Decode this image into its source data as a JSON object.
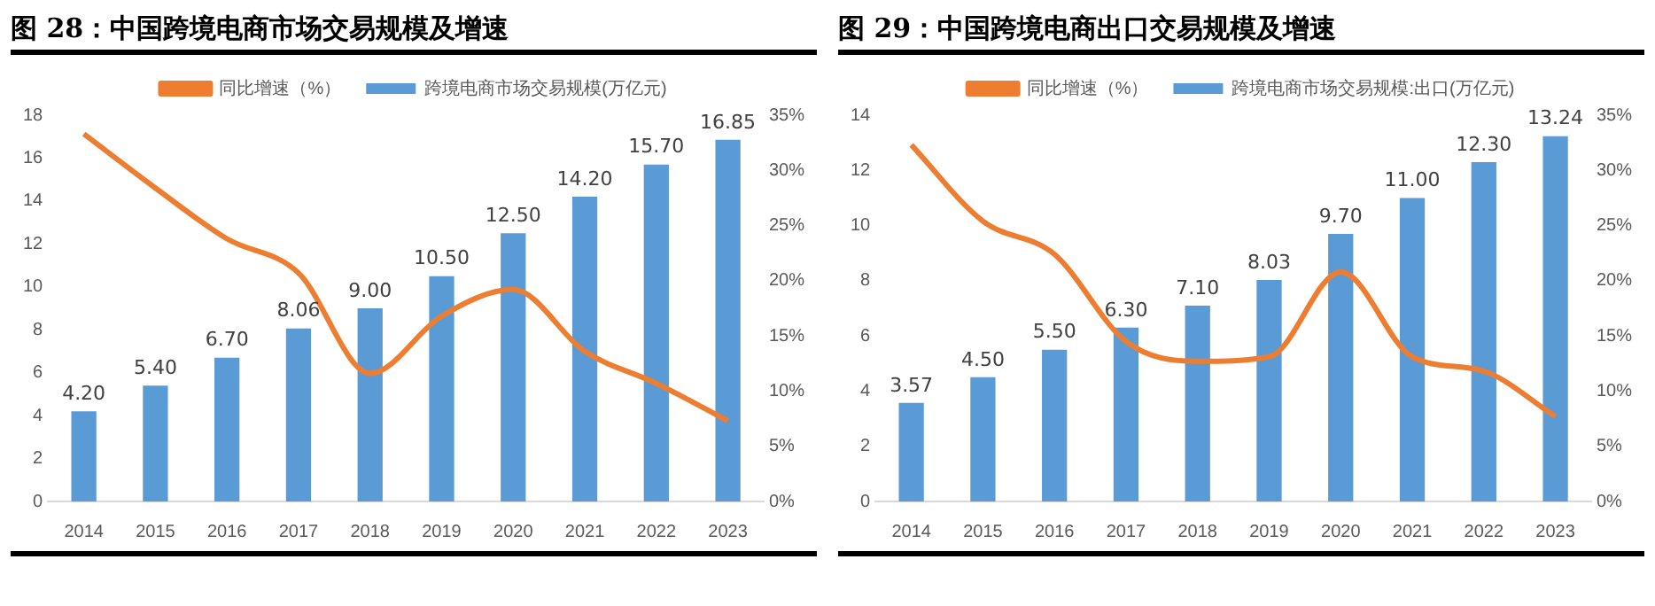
{
  "chart_data": [
    {
      "type": "bar",
      "title": "图 28：中国跨境电商市场交易规模及增速",
      "categories": [
        "2014",
        "2015",
        "2016",
        "2017",
        "2018",
        "2019",
        "2020",
        "2021",
        "2022",
        "2023"
      ],
      "series": [
        {
          "name": "跨境电商市场交易规模(万亿元)",
          "color": "#5b9bd5",
          "values": [
            4.2,
            5.4,
            6.7,
            8.06,
            9.0,
            10.5,
            12.5,
            14.2,
            15.7,
            16.85
          ],
          "value_labels": [
            "4.20",
            "5.40",
            "6.70",
            "8.06",
            "9.00",
            "10.50",
            "12.50",
            "14.20",
            "15.70",
            "16.85"
          ]
        },
        {
          "name": "同比增速（%）",
          "type": "line",
          "axis": "y2",
          "color": "#ed7d31",
          "values": [
            33.3,
            28.4,
            23.8,
            20.7,
            11.6,
            16.8,
            19.2,
            13.6,
            10.7,
            7.3
          ]
        }
      ],
      "ylim": [
        0,
        18
      ],
      "yticks": [
        0,
        2,
        4,
        6,
        8,
        10,
        12,
        14,
        16,
        18
      ],
      "y2lim": [
        0,
        35
      ],
      "y2ticks": [
        {
          "value": 0,
          "label": "0%"
        },
        {
          "value": 5,
          "label": "5%"
        },
        {
          "value": 10,
          "label": "10%"
        },
        {
          "value": 15,
          "label": "15%"
        },
        {
          "value": 20,
          "label": "20%"
        },
        {
          "value": 25,
          "label": "25%"
        },
        {
          "value": 30,
          "label": "30%"
        },
        {
          "value": 35,
          "label": "35%"
        }
      ],
      "grid": false,
      "legend": "top",
      "marker": "none"
    },
    {
      "type": "bar",
      "title": "图 29：中国跨境电商出口交易规模及增速",
      "categories": [
        "2014",
        "2015",
        "2016",
        "2017",
        "2018",
        "2019",
        "2020",
        "2021",
        "2022",
        "2023"
      ],
      "series": [
        {
          "name": "跨境电商市场交易规模:出口(万亿元)",
          "color": "#5b9bd5",
          "values": [
            3.57,
            4.5,
            5.5,
            6.3,
            7.1,
            8.03,
            9.7,
            11.0,
            12.3,
            13.24
          ],
          "value_labels": [
            "3.57",
            "4.50",
            "5.50",
            "6.30",
            "7.10",
            "8.03",
            "9.70",
            "11.00",
            "12.30",
            "13.24"
          ]
        },
        {
          "name": "同比增速（%）",
          "type": "line",
          "axis": "y2",
          "color": "#ed7d31",
          "values": [
            32.3,
            25.4,
            22.4,
            14.5,
            12.7,
            13.1,
            20.8,
            13.1,
            11.8,
            7.7
          ]
        }
      ],
      "ylim": [
        0,
        14
      ],
      "yticks": [
        0,
        2,
        4,
        6,
        8,
        10,
        12,
        14
      ],
      "y2lim": [
        0,
        35
      ],
      "y2ticks": [
        {
          "value": 0,
          "label": "0%"
        },
        {
          "value": 5,
          "label": "5%"
        },
        {
          "value": 10,
          "label": "10%"
        },
        {
          "value": 15,
          "label": "15%"
        },
        {
          "value": 20,
          "label": "20%"
        },
        {
          "value": 25,
          "label": "25%"
        },
        {
          "value": 30,
          "label": "30%"
        },
        {
          "value": 35,
          "label": "35%"
        }
      ],
      "grid": false,
      "legend": "top",
      "marker": "none"
    }
  ]
}
